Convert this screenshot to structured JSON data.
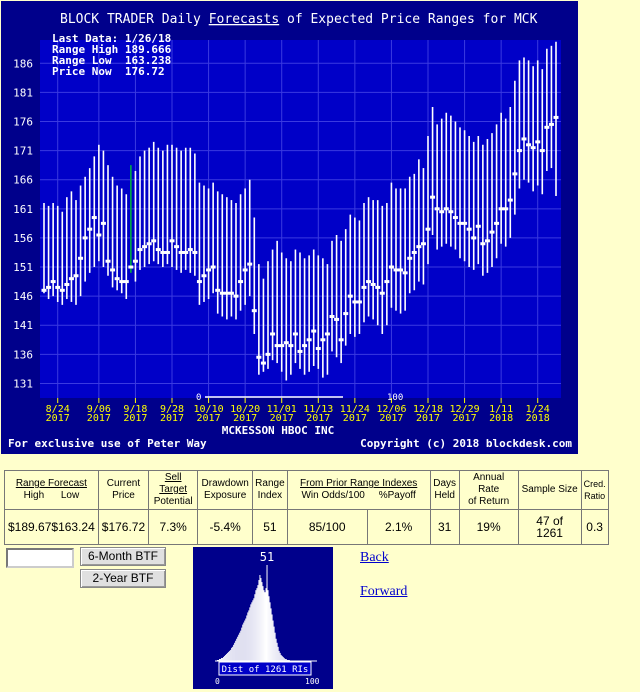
{
  "chart_data": {
    "type": "range",
    "title_prefix": "BLOCK TRADER Daily ",
    "title_link": "Forecasts",
    "title_suffix": " of Expected Price Ranges for  MCK",
    "info": [
      "Last Data: 1/26/18",
      "Range High 189.666",
      "Range Low  163.238",
      "Price Now  176.72"
    ],
    "company": "MCKESSON HBOC INC",
    "footer_left": "For exclusive use of Peter Way",
    "footer_right": "Copyright (c) 2018 blockdesk.com",
    "ylim": [
      128.5,
      190
    ],
    "yticks": [
      131,
      136,
      141,
      146,
      151,
      156,
      161,
      166,
      171,
      176,
      181,
      186
    ],
    "xticks": [
      {
        "label": "8/24",
        "year": "2017",
        "i": 3
      },
      {
        "label": "9/06",
        "year": "2017",
        "i": 12
      },
      {
        "label": "9/18",
        "year": "2017",
        "i": 20
      },
      {
        "label": "9/28",
        "year": "2017",
        "i": 28
      },
      {
        "label": "10/10",
        "year": "2017",
        "i": 36
      },
      {
        "label": "10/20",
        "year": "2017",
        "i": 44
      },
      {
        "label": "11/01",
        "year": "2017",
        "i": 52
      },
      {
        "label": "11/13",
        "year": "2017",
        "i": 60
      },
      {
        "label": "11/24",
        "year": "2017",
        "i": 68
      },
      {
        "label": "12/06",
        "year": "2017",
        "i": 76
      },
      {
        "label": "12/18",
        "year": "2017",
        "i": 84
      },
      {
        "label": "12/29",
        "year": "2017",
        "i": 92
      },
      {
        "label": "1/11",
        "year": "2018",
        "i": 100
      },
      {
        "label": "1/24",
        "year": "2018",
        "i": 108
      }
    ],
    "indicator_labels": [
      "0",
      "100",
      "100"
    ],
    "highlight_color": "#00aa44",
    "highlight_index": 19,
    "series": [
      {
        "low": 146.5,
        "high": 162.0,
        "price": 147.0
      },
      {
        "low": 145.5,
        "high": 161.5,
        "price": 147.5
      },
      {
        "low": 146.0,
        "high": 162.0,
        "price": 148.5
      },
      {
        "low": 145.0,
        "high": 161.5,
        "price": 147.5
      },
      {
        "low": 144.5,
        "high": 160.5,
        "price": 147.0
      },
      {
        "low": 145.5,
        "high": 163.0,
        "price": 148.0
      },
      {
        "low": 145.0,
        "high": 164.0,
        "price": 149.0
      },
      {
        "low": 144.5,
        "high": 162.5,
        "price": 149.5
      },
      {
        "low": 146.0,
        "high": 165.0,
        "price": 152.5
      },
      {
        "low": 148.5,
        "high": 166.5,
        "price": 156.0
      },
      {
        "low": 150.0,
        "high": 168.0,
        "price": 157.5
      },
      {
        "low": 151.0,
        "high": 170.0,
        "price": 159.5
      },
      {
        "low": 152.0,
        "high": 172.0,
        "price": 156.5
      },
      {
        "low": 151.0,
        "high": 171.0,
        "price": 158.5
      },
      {
        "low": 149.5,
        "high": 168.5,
        "price": 152.0
      },
      {
        "low": 147.5,
        "high": 166.5,
        "price": 150.5
      },
      {
        "low": 147.0,
        "high": 165.0,
        "price": 149.0
      },
      {
        "low": 146.5,
        "high": 164.5,
        "price": 148.5
      },
      {
        "low": 145.5,
        "high": 163.5,
        "price": 148.5
      },
      {
        "low": 150.0,
        "high": 168.5,
        "price": 151.0
      },
      {
        "low": 148.5,
        "high": 167.5,
        "price": 152.0
      },
      {
        "low": 150.5,
        "high": 170.0,
        "price": 154.0
      },
      {
        "low": 151.0,
        "high": 171.0,
        "price": 154.5
      },
      {
        "low": 151.5,
        "high": 171.5,
        "price": 155.0
      },
      {
        "low": 152.0,
        "high": 172.5,
        "price": 155.5
      },
      {
        "low": 151.5,
        "high": 171.5,
        "price": 154.0
      },
      {
        "low": 151.0,
        "high": 171.0,
        "price": 153.5
      },
      {
        "low": 151.5,
        "high": 172.0,
        "price": 153.5
      },
      {
        "low": 151.0,
        "high": 172.0,
        "price": 155.5
      },
      {
        "low": 150.5,
        "high": 171.5,
        "price": 154.5
      },
      {
        "low": 150.0,
        "high": 171.0,
        "price": 153.5
      },
      {
        "low": 150.5,
        "high": 171.5,
        "price": 153.5
      },
      {
        "low": 150.0,
        "high": 171.5,
        "price": 154.0
      },
      {
        "low": 149.5,
        "high": 170.5,
        "price": 153.5
      },
      {
        "low": 144.5,
        "high": 165.5,
        "price": 148.5
      },
      {
        "low": 145.0,
        "high": 165.0,
        "price": 149.5
      },
      {
        "low": 145.5,
        "high": 164.5,
        "price": 150.5
      },
      {
        "low": 146.5,
        "high": 165.5,
        "price": 151.0
      },
      {
        "low": 143.0,
        "high": 164.0,
        "price": 147.0
      },
      {
        "low": 142.5,
        "high": 163.5,
        "price": 146.5
      },
      {
        "low": 142.0,
        "high": 163.0,
        "price": 146.5
      },
      {
        "low": 142.5,
        "high": 162.5,
        "price": 146.5
      },
      {
        "low": 142.0,
        "high": 162.0,
        "price": 146.0
      },
      {
        "low": 143.5,
        "high": 163.5,
        "price": 148.5
      },
      {
        "low": 144.5,
        "high": 164.5,
        "price": 150.5
      },
      {
        "low": 146.0,
        "high": 166.0,
        "price": 151.5
      },
      {
        "low": 139.5,
        "high": 159.5,
        "price": 143.5
      },
      {
        "low": 132.5,
        "high": 151.5,
        "price": 135.5
      },
      {
        "low": 133.0,
        "high": 149.0,
        "price": 134.5
      },
      {
        "low": 133.5,
        "high": 152.0,
        "price": 136.0
      },
      {
        "low": 135.0,
        "high": 154.0,
        "price": 139.5
      },
      {
        "low": 134.5,
        "high": 155.5,
        "price": 137.5
      },
      {
        "low": 133.0,
        "high": 153.5,
        "price": 137.5
      },
      {
        "low": 131.5,
        "high": 152.5,
        "price": 138.0
      },
      {
        "low": 132.5,
        "high": 152.0,
        "price": 137.5
      },
      {
        "low": 134.5,
        "high": 154.0,
        "price": 139.5
      },
      {
        "low": 133.5,
        "high": 153.5,
        "price": 136.5
      },
      {
        "low": 132.5,
        "high": 152.5,
        "price": 137.5
      },
      {
        "low": 133.0,
        "high": 153.0,
        "price": 138.5
      },
      {
        "low": 134.0,
        "high": 154.0,
        "price": 140.0
      },
      {
        "low": 133.5,
        "high": 153.0,
        "price": 137.0
      },
      {
        "low": 132.0,
        "high": 152.5,
        "price": 138.5
      },
      {
        "low": 132.5,
        "high": 151.5,
        "price": 139.5
      },
      {
        "low": 136.5,
        "high": 155.5,
        "price": 142.5
      },
      {
        "low": 135.5,
        "high": 156.5,
        "price": 142.0
      },
      {
        "low": 134.5,
        "high": 155.5,
        "price": 138.5
      },
      {
        "low": 137.5,
        "high": 157.5,
        "price": 143.0
      },
      {
        "low": 139.5,
        "high": 160.0,
        "price": 146.0
      },
      {
        "low": 139.0,
        "high": 159.5,
        "price": 145.0
      },
      {
        "low": 139.5,
        "high": 159.0,
        "price": 145.0
      },
      {
        "low": 141.5,
        "high": 162.0,
        "price": 147.5
      },
      {
        "low": 142.5,
        "high": 163.0,
        "price": 148.5
      },
      {
        "low": 142.0,
        "high": 162.5,
        "price": 148.0
      },
      {
        "low": 141.0,
        "high": 162.5,
        "price": 147.5
      },
      {
        "low": 139.5,
        "high": 161.5,
        "price": 146.5
      },
      {
        "low": 141.0,
        "high": 162.0,
        "price": 148.5
      },
      {
        "low": 144.0,
        "high": 165.5,
        "price": 151.0
      },
      {
        "low": 143.5,
        "high": 164.5,
        "price": 150.5
      },
      {
        "low": 143.0,
        "high": 164.5,
        "price": 150.5
      },
      {
        "low": 143.5,
        "high": 164.5,
        "price": 150.0
      },
      {
        "low": 146.5,
        "high": 166.5,
        "price": 152.5
      },
      {
        "low": 147.0,
        "high": 167.0,
        "price": 153.5
      },
      {
        "low": 148.5,
        "high": 169.5,
        "price": 154.5
      },
      {
        "low": 148.0,
        "high": 168.0,
        "price": 155.0
      },
      {
        "low": 151.5,
        "high": 173.5,
        "price": 157.5
      },
      {
        "low": 156.5,
        "high": 178.5,
        "price": 163.0
      },
      {
        "low": 154.0,
        "high": 175.5,
        "price": 161.0
      },
      {
        "low": 154.5,
        "high": 176.5,
        "price": 160.5
      },
      {
        "low": 155.0,
        "high": 177.5,
        "price": 161.0
      },
      {
        "low": 154.5,
        "high": 177.0,
        "price": 160.5
      },
      {
        "low": 154.0,
        "high": 176.0,
        "price": 159.5
      },
      {
        "low": 152.5,
        "high": 175.0,
        "price": 158.5
      },
      {
        "low": 152.0,
        "high": 174.5,
        "price": 158.5
      },
      {
        "low": 151.0,
        "high": 173.5,
        "price": 157.5
      },
      {
        "low": 150.5,
        "high": 172.5,
        "price": 156.0
      },
      {
        "low": 151.5,
        "high": 173.5,
        "price": 158.0
      },
      {
        "low": 149.5,
        "high": 172.0,
        "price": 155.0
      },
      {
        "low": 150.0,
        "high": 173.0,
        "price": 155.5
      },
      {
        "low": 151.0,
        "high": 174.0,
        "price": 157.0
      },
      {
        "low": 152.5,
        "high": 175.5,
        "price": 158.5
      },
      {
        "low": 155.0,
        "high": 177.5,
        "price": 161.0
      },
      {
        "low": 154.5,
        "high": 176.5,
        "price": 161.0
      },
      {
        "low": 156.0,
        "high": 178.5,
        "price": 162.5
      },
      {
        "low": 160.0,
        "high": 183.0,
        "price": 167.0
      },
      {
        "low": 164.5,
        "high": 186.5,
        "price": 171.0
      },
      {
        "low": 166.0,
        "high": 187.0,
        "price": 173.0
      },
      {
        "low": 165.5,
        "high": 186.5,
        "price": 172.0
      },
      {
        "low": 164.0,
        "high": 185.5,
        "price": 171.5
      },
      {
        "low": 165.0,
        "high": 186.5,
        "price": 172.5
      },
      {
        "low": 163.5,
        "high": 185.0,
        "price": 171.0
      },
      {
        "low": 167.5,
        "high": 188.5,
        "price": 175.0
      },
      {
        "low": 168.0,
        "high": 189.0,
        "price": 175.5
      },
      {
        "low": 163.2,
        "high": 189.7,
        "price": 176.7
      }
    ]
  },
  "table": {
    "headers": {
      "range_forecast": "Range Forecast",
      "high": "High",
      "low": "Low",
      "current": "Current",
      "price": "Price",
      "sell_target": "Sell Target",
      "potential": "Potential",
      "drawdown": "Drawdown",
      "exposure": "Exposure",
      "range": "Range",
      "index": "Index",
      "from_prior": "From Prior Range Indexes",
      "win_odds": "Win Odds/100",
      "payoff": "%Payoff",
      "days": "Days",
      "held": "Held",
      "annual_rate": "Annual Rate",
      "of_return": "of Return",
      "sample_size": "Sample Size",
      "cred": "Cred.",
      "ratio": "Ratio"
    },
    "values": {
      "high": "$189.67",
      "low": "$163.24",
      "current_price": "$176.72",
      "sell_target": "7.3%",
      "drawdown": "-5.4%",
      "range_index": "51",
      "win_odds": "85/100",
      "payoff": "2.1%",
      "days_held": "31",
      "annual_rate": "19%",
      "sample_size": "47 of 1261",
      "cred_ratio": "0.3"
    }
  },
  "controls": {
    "input_value": "",
    "btn_6m": "6-Month BTF",
    "btn_2y": "2-Year BTF",
    "back": "Back",
    "forward": "Forward"
  },
  "histogram": {
    "marker_label": "51",
    "marker_value": 51,
    "caption": "Dist of 1261 RIs",
    "axis_min": "0",
    "axis_max": "100",
    "counts": [
      0,
      0,
      1,
      1,
      2,
      2,
      3,
      3,
      4,
      5,
      6,
      7,
      8,
      9,
      10,
      11,
      13,
      14,
      16,
      18,
      20,
      22,
      24,
      26,
      28,
      30,
      33,
      36,
      38,
      40,
      42,
      45,
      48,
      50,
      53,
      56,
      58,
      60,
      62,
      66,
      70,
      72,
      75,
      80,
      85,
      82,
      78,
      74,
      70,
      68,
      72,
      76,
      70,
      64,
      58,
      52,
      46,
      40,
      34,
      28,
      22,
      18,
      14,
      10,
      8,
      6,
      5,
      4,
      3,
      2,
      2,
      1,
      1,
      1,
      0,
      0,
      0,
      0,
      0,
      0,
      0,
      0,
      0,
      0,
      0,
      0,
      0,
      0,
      0,
      0,
      0,
      0,
      0,
      0,
      0,
      0,
      0,
      0,
      0,
      0,
      0
    ]
  }
}
